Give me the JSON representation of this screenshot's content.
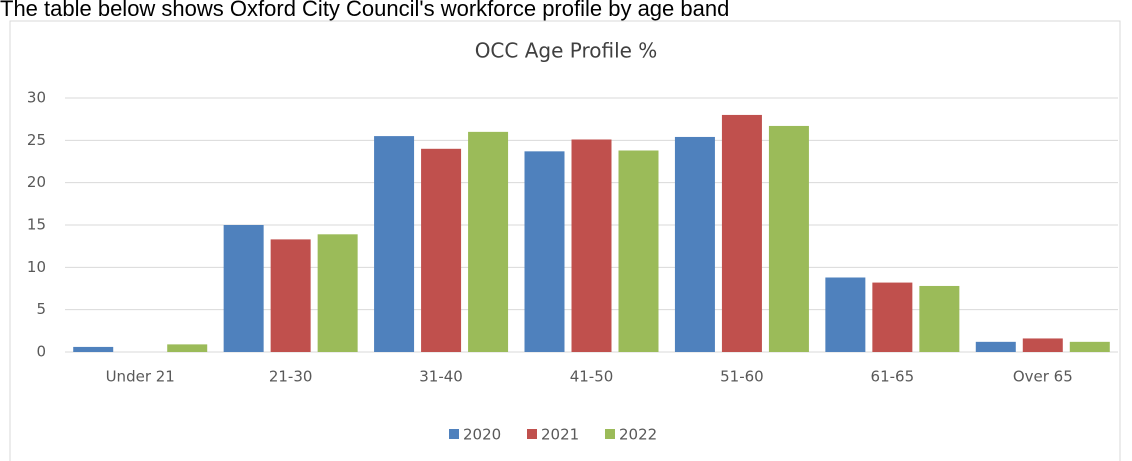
{
  "intro_text": "The table below shows Oxford City Council's workforce profile by age band",
  "chart_data": {
    "type": "bar",
    "title": "OCC Age Profile %",
    "categories": [
      "Under 21",
      "21-30",
      "31-40",
      "41-50",
      "51-60",
      "61-65",
      "Over 65"
    ],
    "series": [
      {
        "name": "2020",
        "color": "#4f81bd",
        "values": [
          0.6,
          15.0,
          25.5,
          23.7,
          25.4,
          8.8,
          1.2
        ]
      },
      {
        "name": "2021",
        "color": "#c0504d",
        "values": [
          0,
          13.3,
          24.0,
          25.1,
          28.0,
          8.2,
          1.6
        ]
      },
      {
        "name": "2022",
        "color": "#9bbb59",
        "values": [
          0.9,
          13.9,
          26.0,
          23.8,
          26.7,
          7.8,
          1.2
        ]
      }
    ],
    "ylim": [
      0,
      30
    ],
    "yticks": [
      0,
      5,
      10,
      15,
      20,
      25,
      30
    ],
    "grid": true,
    "legend": "bottom"
  }
}
